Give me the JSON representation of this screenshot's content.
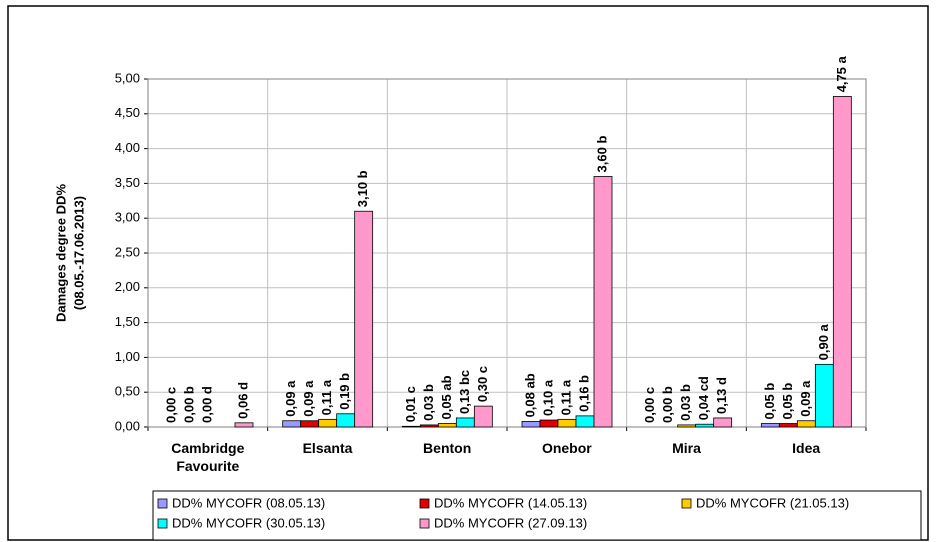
{
  "chart_data": {
    "type": "bar",
    "ylabel": [
      "Damages degree DD%",
      "(08.05.-17.06.2013)"
    ],
    "categories": [
      "Cambridge Favourite",
      "Elsanta",
      "Benton",
      "Onebor",
      "Mira",
      "Idea"
    ],
    "series": [
      {
        "name": "DD% MYCOFR (08.05.13)",
        "color": "#9999ff",
        "values": [
          0.0,
          0.09,
          0.01,
          0.08,
          0.0,
          0.05
        ],
        "value_labels": [
          "0,00 c",
          "0,09 a",
          "0,01 c",
          "0,08 ab",
          "0,00 c",
          "0,05 b"
        ]
      },
      {
        "name": "DD% MYCOFR (14.05.13)",
        "color": "#e00000",
        "values": [
          0.0,
          0.09,
          0.03,
          0.1,
          0.0,
          0.05
        ],
        "value_labels": [
          "0,00 b",
          "0,09 a",
          "0,03 b",
          "0,10 a",
          "0,00 b",
          "0,05 b"
        ]
      },
      {
        "name": "DD% MYCOFR (21.05.13)",
        "color": "#ffcc00",
        "values": [
          0.0,
          0.11,
          0.05,
          0.11,
          0.03,
          0.09
        ],
        "value_labels": [
          "0,00 d",
          "0,11 a",
          "0,05 ab",
          "0,11 a",
          "0,03 b",
          "0,09 a"
        ]
      },
      {
        "name": "DD% MYCOFR (30.05.13)",
        "color": "#00ffff",
        "values": [
          null,
          0.19,
          0.13,
          0.16,
          0.04,
          0.9
        ],
        "value_labels": [
          null,
          "0,19 b",
          "0,13 bc",
          "0,16 b",
          "0,04 cd",
          "0,90 a"
        ]
      },
      {
        "name": "DD% MYCOFR (27.09.13)",
        "color": "#ff99cc",
        "values": [
          0.06,
          3.1,
          0.3,
          3.6,
          0.13,
          4.75
        ],
        "value_labels": [
          "0,06 d",
          "3,10 b",
          "0,30 c",
          "3,60 b",
          "0,13 d",
          "4,75 a"
        ]
      }
    ],
    "ylim": [
      0,
      5
    ],
    "yticks": [
      {
        "value": 0,
        "label": "0,00"
      },
      {
        "value": 0.5,
        "label": "0,50"
      },
      {
        "value": 1,
        "label": "1,00"
      },
      {
        "value": 1.5,
        "label": "1,50"
      },
      {
        "value": 2,
        "label": "2,00"
      },
      {
        "value": 2.5,
        "label": "2,50"
      },
      {
        "value": 3,
        "label": "3,00"
      },
      {
        "value": 3.5,
        "label": "3,50"
      },
      {
        "value": 4,
        "label": "4,00"
      },
      {
        "value": 4.5,
        "label": "4,50"
      },
      {
        "value": 5,
        "label": "5,00"
      }
    ],
    "grid": true
  }
}
